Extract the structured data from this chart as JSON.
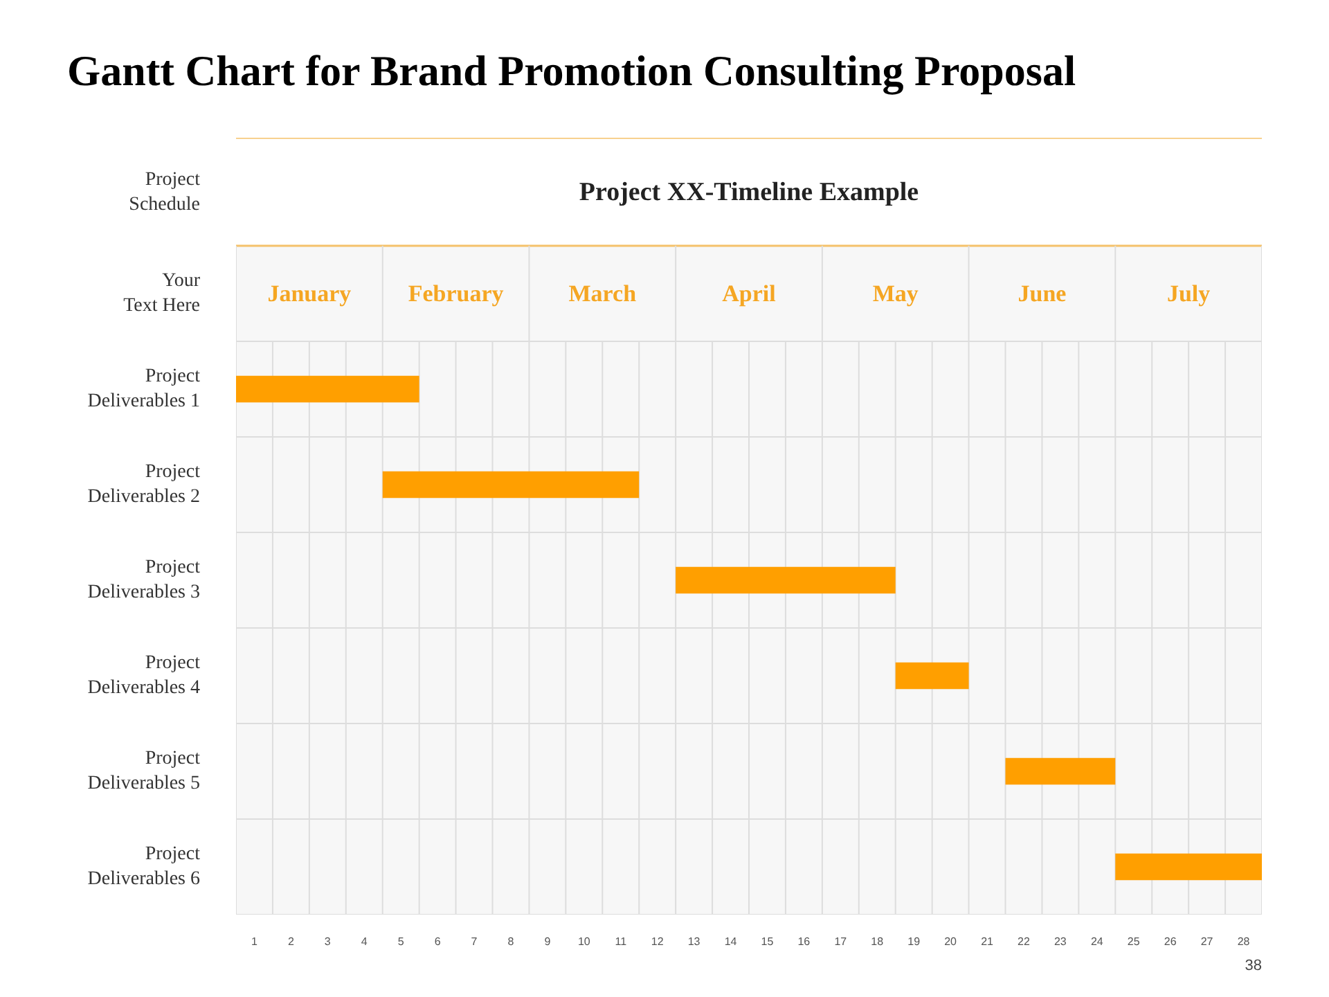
{
  "chart_data": {
    "type": "bar",
    "orientation": "horizontal",
    "title": "Gantt Chart for Brand Promotion Consulting Proposal",
    "subtitle": "Project XX-Timeline Example",
    "annotations": [
      "Project Schedule",
      "Your Text Here",
      "January",
      "February",
      "March",
      "April",
      "May",
      "June",
      "July",
      "38"
    ],
    "categories": [
      "Project Deliverables 1",
      "Project Deliverables 2",
      "Project Deliverables 3",
      "Project Deliverables 4",
      "Project Deliverables 5",
      "Project Deliverables 6"
    ],
    "base": [
      0,
      4,
      12,
      18,
      21,
      24
    ],
    "values": [
      5,
      7,
      6,
      2,
      3,
      4
    ],
    "color": "#ff9f00",
    "xlim": [
      0,
      28
    ],
    "xticks": [
      {
        "value": 0.5,
        "label": "1"
      },
      {
        "value": 1.5,
        "label": "2"
      },
      {
        "value": 2.5,
        "label": "3"
      },
      {
        "value": 3.5,
        "label": "4"
      },
      {
        "value": 4.5,
        "label": "5"
      },
      {
        "value": 5.5,
        "label": "6"
      },
      {
        "value": 6.5,
        "label": "7"
      },
      {
        "value": 7.5,
        "label": "8"
      },
      {
        "value": 8.5,
        "label": "9"
      },
      {
        "value": 9.5,
        "label": "10"
      },
      {
        "value": 10.5,
        "label": "11"
      },
      {
        "value": 11.5,
        "label": "12"
      },
      {
        "value": 12.5,
        "label": "13"
      },
      {
        "value": 13.5,
        "label": "14"
      },
      {
        "value": 14.5,
        "label": "15"
      },
      {
        "value": 15.5,
        "label": "16"
      },
      {
        "value": 16.5,
        "label": "17"
      },
      {
        "value": 17.5,
        "label": "18"
      },
      {
        "value": 18.5,
        "label": "19"
      },
      {
        "value": 19.5,
        "label": "20"
      },
      {
        "value": 20.5,
        "label": "21"
      },
      {
        "value": 21.5,
        "label": "22"
      },
      {
        "value": 22.5,
        "label": "23"
      },
      {
        "value": 23.5,
        "label": "24"
      },
      {
        "value": 24.5,
        "label": "25"
      },
      {
        "value": 25.5,
        "label": "26"
      },
      {
        "value": 26.5,
        "label": "27"
      },
      {
        "value": 27.5,
        "label": "28"
      }
    ],
    "grid": true
  }
}
